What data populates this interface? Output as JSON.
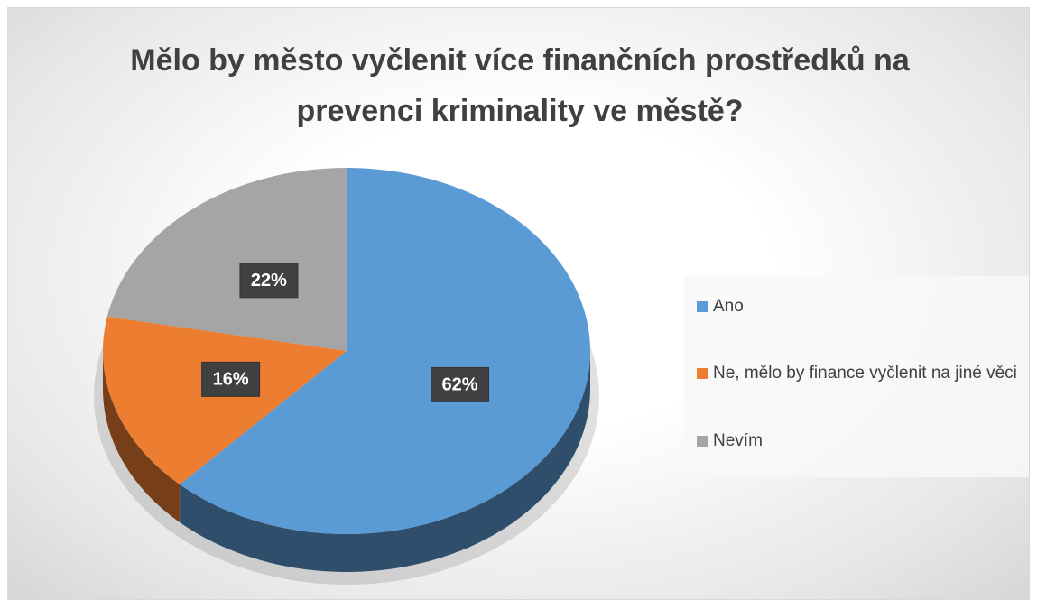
{
  "chart_data": {
    "type": "pie",
    "title": "Mělo by město vyčlenit více finančních prostředků na prevenci kriminality ve městě?",
    "categories": [
      "Ano",
      "Ne, mělo by finance vyčlenit na jiné věci",
      "Nevím"
    ],
    "values": [
      62,
      16,
      22
    ],
    "value_labels": [
      "62%",
      "16%",
      "22%"
    ],
    "colors": [
      "#5b9bd5",
      "#ed7d31",
      "#a5a5a5"
    ],
    "legend": "right"
  }
}
